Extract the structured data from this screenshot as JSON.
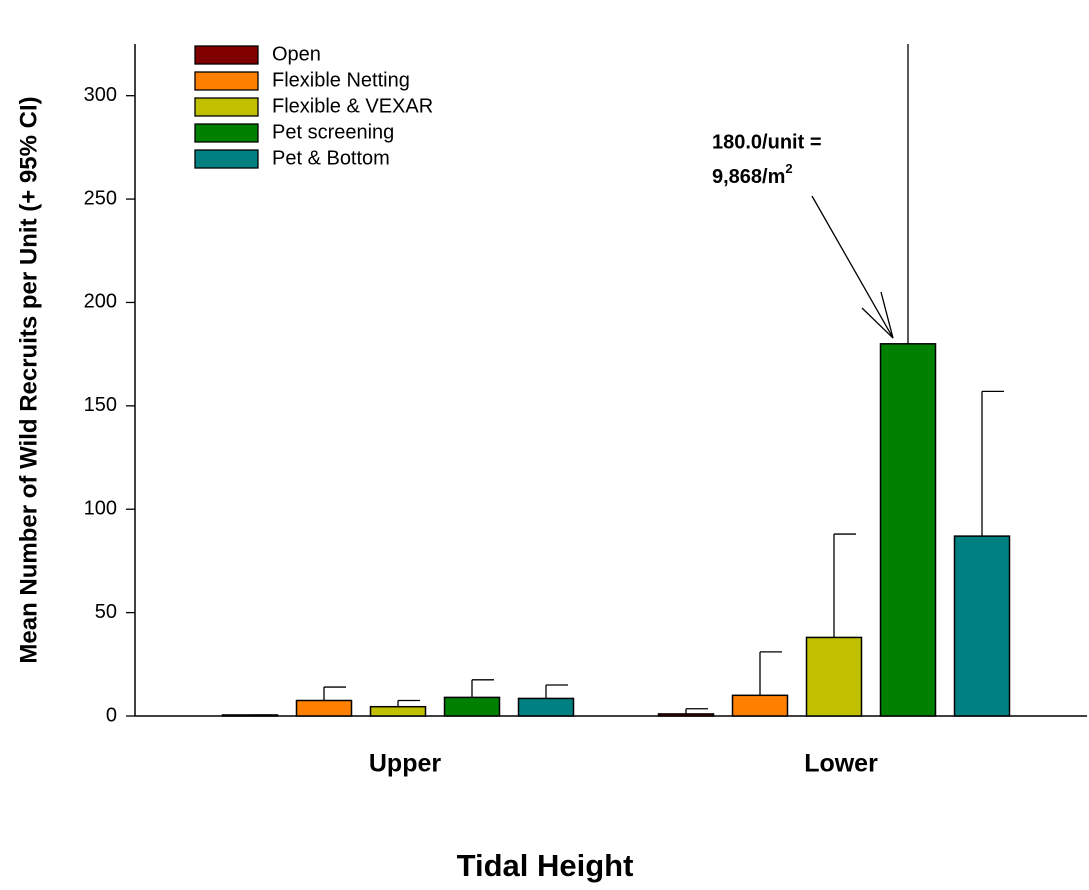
{
  "chart_data": {
    "type": "bar",
    "x_label": "Tidal Height",
    "y_label": "Mean Number of Wild Recruits per Unit (+ 95% CI)",
    "categories": [
      "Upper",
      "Lower"
    ],
    "series": [
      {
        "name": "Open",
        "color": "#800000",
        "values": [
          0.5,
          1
        ],
        "errors": [
          0,
          2.5
        ]
      },
      {
        "name": "Flexible Netting",
        "color": "#ff8000",
        "values": [
          7.5,
          10
        ],
        "errors": [
          6.5,
          21
        ]
      },
      {
        "name": "Flexible & VEXAR",
        "color": "#c0c000",
        "values": [
          4.5,
          38
        ],
        "errors": [
          3,
          50
        ]
      },
      {
        "name": "Pet screening",
        "color": "#008000",
        "values": [
          9,
          180
        ],
        "errors": [
          8.5,
          150
        ]
      },
      {
        "name": "Pet & Bottom",
        "color": "#008080",
        "values": [
          8.5,
          87
        ],
        "errors": [
          6.5,
          70
        ]
      }
    ],
    "ylim": [
      0,
      325
    ],
    "yticks": [
      0,
      50,
      100,
      150,
      200,
      250,
      300
    ],
    "annotation": {
      "lines": [
        "180.0/unit =",
        "9,868/m"
      ],
      "superscript": "2"
    },
    "legend": "upper left"
  }
}
